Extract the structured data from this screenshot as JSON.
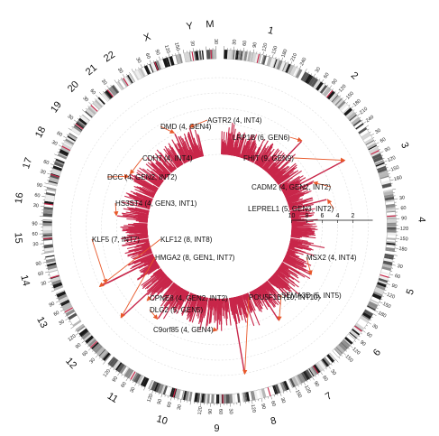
{
  "chart_data": {
    "type": "circos",
    "bar_color": "#c8274a",
    "arrow_color": "#e8582a",
    "chromosomes": [
      {
        "name": "1",
        "size": 249
      },
      {
        "name": "2",
        "size": 243
      },
      {
        "name": "3",
        "size": 198
      },
      {
        "name": "4",
        "size": 191
      },
      {
        "name": "5",
        "size": 181
      },
      {
        "name": "6",
        "size": 171
      },
      {
        "name": "7",
        "size": 159
      },
      {
        "name": "8",
        "size": 146
      },
      {
        "name": "9",
        "size": 141
      },
      {
        "name": "10",
        "size": 136
      },
      {
        "name": "11",
        "size": 135
      },
      {
        "name": "12",
        "size": 134
      },
      {
        "name": "13",
        "size": 115
      },
      {
        "name": "14",
        "size": 107
      },
      {
        "name": "15",
        "size": 103
      },
      {
        "name": "16",
        "size": 90
      },
      {
        "name": "17",
        "size": 81
      },
      {
        "name": "18",
        "size": 78
      },
      {
        "name": "19",
        "size": 59
      },
      {
        "name": "20",
        "size": 63
      },
      {
        "name": "21",
        "size": 48
      },
      {
        "name": "22",
        "size": 51
      },
      {
        "name": "X",
        "size": 155
      },
      {
        "name": "Y",
        "size": 59
      },
      {
        "name": "M",
        "size": 30
      }
    ],
    "tick_step_mb": 30,
    "radial_axis": {
      "ticks": [
        "10",
        "8",
        "6",
        "4",
        "2"
      ],
      "range": [
        0,
        10
      ]
    },
    "highlights": [
      {
        "label": "AGTR2 (4, INT4)",
        "chrom": "X",
        "pos": 116,
        "value": 4
      },
      {
        "label": "DMD (4, GEN4)",
        "chrom": "X",
        "pos": 32,
        "value": 4
      },
      {
        "label": "LRP1B (6, GEN6)",
        "chrom": "2",
        "pos": 141,
        "value": 6
      },
      {
        "label": "CDH7 (4, INT4)",
        "chrom": "18",
        "pos": 63,
        "value": 4
      },
      {
        "label": "FHIT (9, GEN9)",
        "chrom": "3",
        "pos": 60,
        "value": 9
      },
      {
        "label": "DCC (4, GEN2, INT2)",
        "chrom": "18",
        "pos": 50,
        "value": 4
      },
      {
        "label": "CADM2 (4, GEN2, INT2)",
        "chrom": "3",
        "pos": 85,
        "value": 4
      },
      {
        "label": "HS3ST4 (4, GEN3, INT1)",
        "chrom": "16",
        "pos": 25,
        "value": 4
      },
      {
        "label": "LEPREL1 (5, GEN3, INT2)",
        "chrom": "3",
        "pos": 189,
        "value": 5
      },
      {
        "label": "KLF5 (7, INT7)",
        "chrom": "13",
        "pos": 73,
        "value": 7
      },
      {
        "label": "KLF12 (8, INT8)",
        "chrom": "13",
        "pos": 74,
        "value": 8
      },
      {
        "label": "MSX2 (4, INT4)",
        "chrom": "5",
        "pos": 174,
        "value": 4
      },
      {
        "label": "HMGA2 (8, GEN1, INT7)",
        "chrom": "12",
        "pos": 66,
        "value": 8
      },
      {
        "label": "POU5F1B (10, INT10)",
        "chrom": "8",
        "pos": 128,
        "value": 10
      },
      {
        "label": "SEMA3D (5, INT5)",
        "chrom": "7",
        "pos": 84,
        "value": 5
      },
      {
        "label": "CPNE8 (4, GEN2, INT2)",
        "chrom": "12",
        "pos": 39,
        "value": 4
      },
      {
        "label": "DLG2 (5, GEN5)",
        "chrom": "11",
        "pos": 84,
        "value": 5
      },
      {
        "label": "C9orf85 (4, GEN4)",
        "chrom": "9",
        "pos": 74,
        "value": 4
      }
    ]
  }
}
